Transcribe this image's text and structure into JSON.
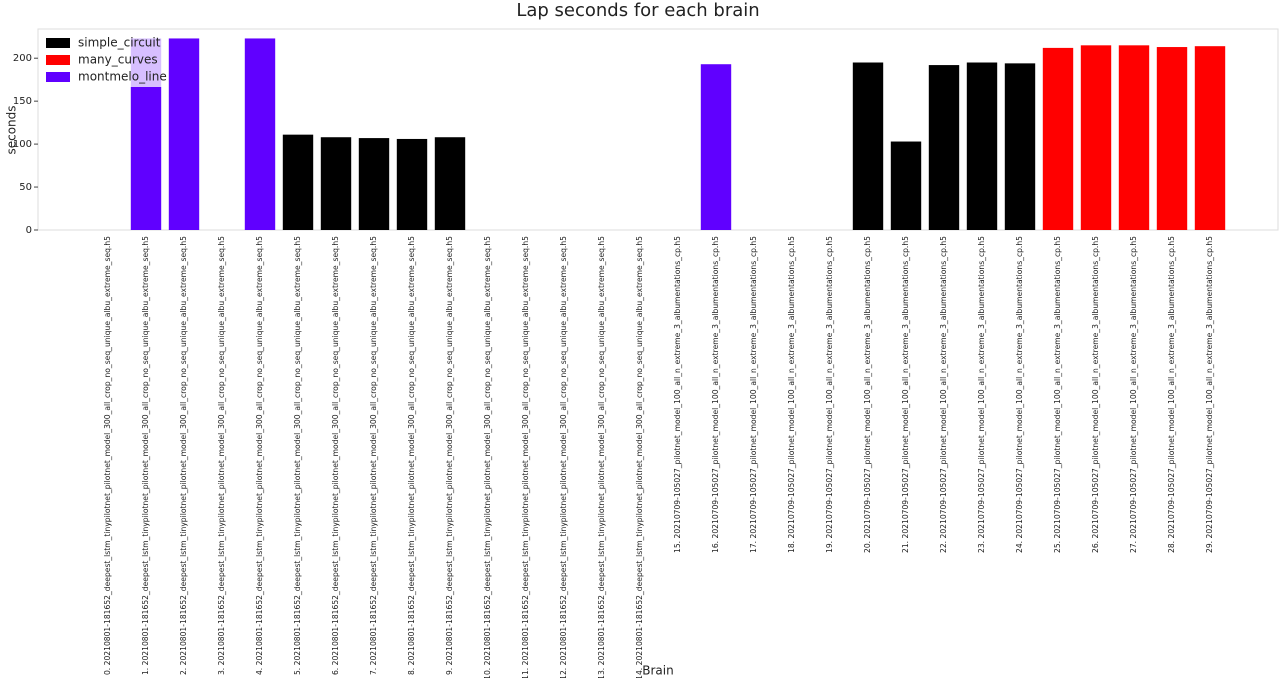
{
  "chart_data": {
    "type": "bar",
    "title": "Lap seconds for each brain",
    "xlabel": "Brain",
    "ylabel": "seconds",
    "categories": [
      "0. 20210801-181652_deepest_lstm_tinypilotnet_pilotnet_model_300_all_crop_no_seq_unique_albu_extreme_seq.h5",
      "1. 20210801-181652_deepest_lstm_tinypilotnet_pilotnet_model_300_all_crop_no_seq_unique_albu_extreme_seq.h5",
      "2. 20210801-181652_deepest_lstm_tinypilotnet_pilotnet_model_300_all_crop_no_seq_unique_albu_extreme_seq.h5",
      "3. 20210801-181652_deepest_lstm_tinypilotnet_pilotnet_model_300_all_crop_no_seq_unique_albu_extreme_seq.h5",
      "4. 20210801-181652_deepest_lstm_tinypilotnet_pilotnet_model_300_all_crop_no_seq_unique_albu_extreme_seq.h5",
      "5. 20210801-181652_deepest_lstm_tinypilotnet_pilotnet_model_300_all_crop_no_seq_unique_albu_extreme_seq.h5",
      "6. 20210801-181652_deepest_lstm_tinypilotnet_pilotnet_model_300_all_crop_no_seq_unique_albu_extreme_seq.h5",
      "7. 20210801-181652_deepest_lstm_tinypilotnet_pilotnet_model_300_all_crop_no_seq_unique_albu_extreme_seq.h5",
      "8. 20210801-181652_deepest_lstm_tinypilotnet_pilotnet_model_300_all_crop_no_seq_unique_albu_extreme_seq.h5",
      "9. 20210801-181652_deepest_lstm_tinypilotnet_pilotnet_model_300_all_crop_no_seq_unique_albu_extreme_seq.h5",
      "10. 20210801-181652_deepest_lstm_tinypilotnet_pilotnet_model_300_all_crop_no_seq_unique_albu_extreme_seq.h5",
      "11. 20210801-181652_deepest_lstm_tinypilotnet_pilotnet_model_300_all_crop_no_seq_unique_albu_extreme_seq.h5",
      "12. 20210801-181652_deepest_lstm_tinypilotnet_pilotnet_model_300_all_crop_no_seq_unique_albu_extreme_seq.h5",
      "13. 20210801-181652_deepest_lstm_tinypilotnet_pilotnet_model_300_all_crop_no_seq_unique_albu_extreme_seq.h5",
      "14. 20210801-181652_deepest_lstm_tinypilotnet_pilotnet_model_300_all_crop_no_seq_unique_albu_extreme_seq.h5",
      "15. 20210709-105027_pilotnet_model_100_all_n_extreme_3_albumentations_cp.h5",
      "16. 20210709-105027_pilotnet_model_100_all_n_extreme_3_albumentations_cp.h5",
      "17. 20210709-105027_pilotnet_model_100_all_n_extreme_3_albumentations_cp.h5",
      "18. 20210709-105027_pilotnet_model_100_all_n_extreme_3_albumentations_cp.h5",
      "19. 20210709-105027_pilotnet_model_100_all_n_extreme_3_albumentations_cp.h5",
      "20. 20210709-105027_pilotnet_model_100_all_n_extreme_3_albumentations_cp.h5",
      "21. 20210709-105027_pilotnet_model_100_all_n_extreme_3_albumentations_cp.h5",
      "22. 20210709-105027_pilotnet_model_100_all_n_extreme_3_albumentations_cp.h5",
      "23. 20210709-105027_pilotnet_model_100_all_n_extreme_3_albumentations_cp.h5",
      "24. 20210709-105027_pilotnet_model_100_all_n_extreme_3_albumentations_cp.h5",
      "25. 20210709-105027_pilotnet_model_100_all_n_extreme_3_albumentations_cp.h5",
      "26. 20210709-105027_pilotnet_model_100_all_n_extreme_3_albumentations_cp.h5",
      "27. 20210709-105027_pilotnet_model_100_all_n_extreme_3_albumentations_cp.h5",
      "28. 20210709-105027_pilotnet_model_100_all_n_extreme_3_albumentations_cp.h5",
      "29. 20210709-105027_pilotnet_model_100_all_n_extreme_3_albumentations_cp.h5"
    ],
    "series": [
      {
        "name": "simple_circuit",
        "color": "#000000",
        "values": [
          null,
          null,
          null,
          null,
          null,
          111,
          108,
          107,
          106,
          108,
          null,
          null,
          null,
          null,
          null,
          null,
          null,
          null,
          null,
          null,
          195,
          103,
          192,
          195,
          194,
          null,
          null,
          null,
          null,
          null
        ]
      },
      {
        "name": "many_curves",
        "color": "#ff0000",
        "values": [
          null,
          null,
          null,
          null,
          null,
          null,
          null,
          null,
          null,
          null,
          null,
          null,
          null,
          null,
          null,
          null,
          null,
          null,
          null,
          null,
          null,
          null,
          null,
          null,
          null,
          212,
          215,
          215,
          213,
          214
        ]
      },
      {
        "name": "montmelo_line",
        "color": "#6000ff",
        "values": [
          null,
          223,
          223,
          null,
          223,
          null,
          null,
          null,
          null,
          null,
          null,
          null,
          null,
          null,
          null,
          null,
          193,
          null,
          null,
          null,
          null,
          null,
          null,
          null,
          null,
          null,
          null,
          null,
          null,
          null
        ]
      }
    ],
    "ylim": [
      0,
      234
    ],
    "yticks": [
      0,
      50,
      100,
      150,
      200
    ],
    "legend": "upper left"
  }
}
